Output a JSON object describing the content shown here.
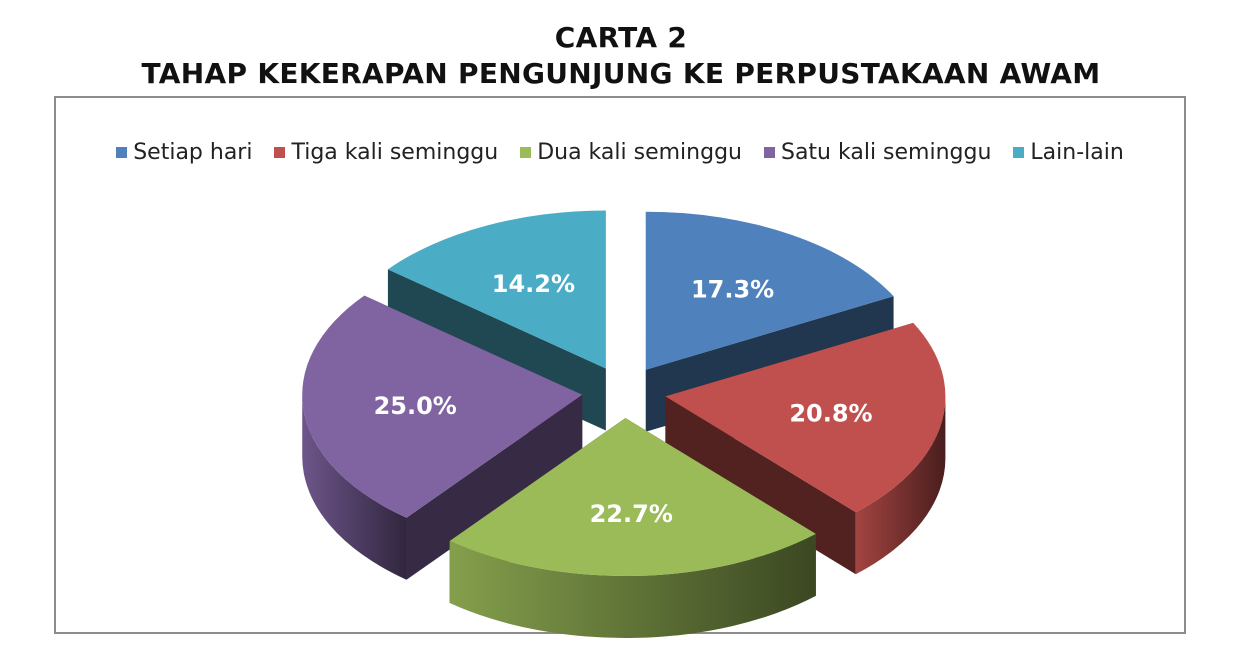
{
  "title_line1": "CARTA 2",
  "title_line2": "TAHAP KEKERAPAN PENGUNJUNG KE PERPUSTAKAAN AWAM",
  "chart_data": {
    "type": "pie",
    "title": "CARTA 2 TAHAP KEKERAPAN PENGUNJUNG KE PERPUSTAKAAN AWAM",
    "legend_position": "top",
    "exploded": true,
    "style": "3d",
    "categories": [
      "Setiap hari",
      "Tiga kali seminggu",
      "Dua kali seminggu",
      "Satu kali seminggu",
      "Lain-lain"
    ],
    "values": [
      17.3,
      20.8,
      22.7,
      25.0,
      14.2
    ],
    "labels": [
      "17.3%",
      "20.8%",
      "22.7%",
      "25.0%",
      "14.2%"
    ],
    "colors": [
      "#4f81bd",
      "#c0504d",
      "#9bbb59",
      "#8064a2",
      "#4bacc6"
    ]
  }
}
